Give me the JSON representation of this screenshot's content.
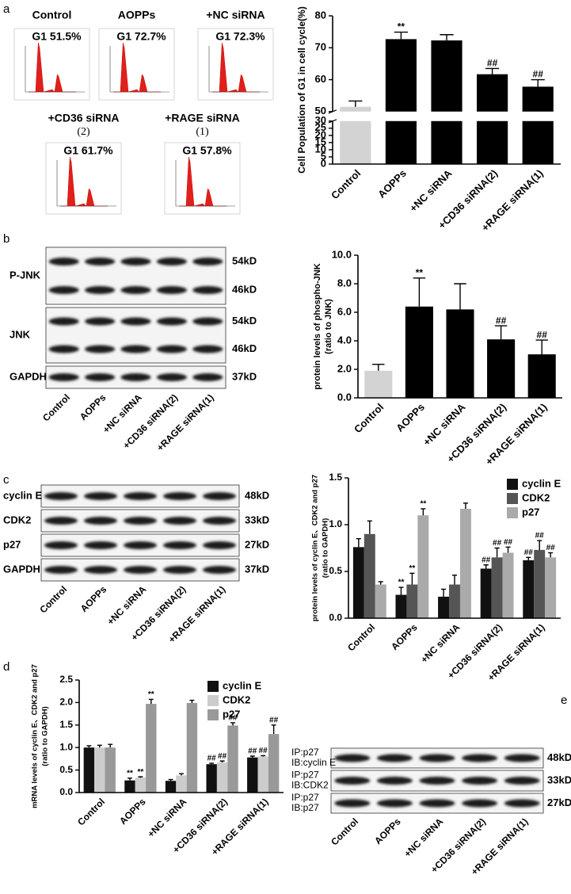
{
  "panel_labels": [
    "a",
    "b",
    "c",
    "d",
    "e"
  ],
  "flow_plots": [
    {
      "title": "Control",
      "gate": "G1 51.5%"
    },
    {
      "title": "AOPPs",
      "gate": "G1 72.7%"
    },
    {
      "title": "+NC siRNA",
      "gate": "G1 72.3%"
    },
    {
      "title": "+CD36 siRNA",
      "note": "(2)",
      "gate": "G1 61.7%"
    },
    {
      "title": "+RAGE siRNA",
      "note": "(1)",
      "gate": "G1 57.8%"
    }
  ],
  "blots": [
    {
      "lanes": [
        "Control",
        "AOPPs",
        "+NC siRNA",
        "+CD36 siRNA(2)",
        "+RAGE siRNA(1)"
      ],
      "rows": [
        {
          "label": [
            "P-JNK"
          ],
          "bands": [
            "54kD",
            "46kD"
          ]
        },
        {
          "label": [
            "JNK"
          ],
          "bands": [
            "54kD",
            "46kD"
          ]
        },
        {
          "label": [
            "GAPDH"
          ],
          "bands": [
            "37kD"
          ]
        }
      ]
    },
    {
      "lanes": [
        "Control",
        "AOPPs",
        "+NC siRNA",
        "+CD36 siRNA(2)",
        "+RAGE siRNA(1)"
      ],
      "rows": [
        {
          "label": [
            "cyclin E"
          ],
          "bands": [
            "48kD"
          ]
        },
        {
          "label": [
            "CDK2"
          ],
          "bands": [
            "33kD"
          ]
        },
        {
          "label": [
            "p27"
          ],
          "bands": [
            "27kD"
          ]
        },
        {
          "label": [
            "GAPDH"
          ],
          "bands": [
            "37kD"
          ]
        }
      ]
    },
    {
      "lanes": [
        "Control",
        "AOPPs",
        "+NC siRNA",
        "+CD36 siRNA(2)",
        "+RAGE siRNA(1)"
      ],
      "rows": [
        {
          "label": [
            "IP:p27",
            "IB:cyclin E"
          ],
          "bands": [
            "48kD"
          ]
        },
        {
          "label": [
            "IP:p27",
            "IB:CDK2"
          ],
          "bands": [
            "33kD"
          ]
        },
        {
          "label": [
            "IP:p27",
            "IB:p27"
          ],
          "bands": [
            "27kD"
          ]
        }
      ]
    }
  ],
  "chart_data": [
    {
      "type": "bar",
      "ylabel": [
        "Cell Population of G1 in cell cycle(%)"
      ],
      "categories": [
        "Control",
        "AOPPs",
        "+NC siRNA",
        "+CD36 siRNA(2)",
        "+RAGE siRNA(1)"
      ],
      "values": [
        51.5,
        72.7,
        72.3,
        61.7,
        57.8
      ],
      "errors": [
        1.8,
        2.2,
        1.8,
        1.8,
        2.2
      ],
      "annotations": [
        null,
        "**",
        null,
        "##",
        "##"
      ],
      "colors": [
        "#d3d3d3",
        "#000000",
        "#000000",
        "#000000",
        "#000000"
      ],
      "ylim": [
        0,
        80
      ],
      "ybreak": [
        30,
        50
      ],
      "yticks": [
        0,
        5,
        10,
        15,
        20,
        25,
        30,
        50,
        60,
        70,
        80
      ]
    },
    {
      "type": "bar",
      "ylabel": [
        "protein levels of phospho-JNK",
        "(ratio to JNK)"
      ],
      "categories": [
        "Control",
        "AOPPs",
        "+NC siRNA",
        "+CD36 siRNA(2)",
        "+RAGE siRNA(1)"
      ],
      "values": [
        1.9,
        6.4,
        6.2,
        4.1,
        3.05
      ],
      "errors": [
        0.45,
        2.0,
        1.8,
        0.95,
        1.0
      ],
      "annotations": [
        null,
        "**",
        null,
        "##",
        "##"
      ],
      "colors": [
        "#d3d3d3",
        "#000000",
        "#000000",
        "#000000",
        "#000000"
      ],
      "ylim": [
        0,
        10
      ],
      "yticks": [
        {
          "value": 0,
          "label": "0.0"
        },
        {
          "value": 2,
          "label": "2.0"
        },
        {
          "value": 4,
          "label": "4.0"
        },
        {
          "value": 6,
          "label": "6.0"
        },
        {
          "value": 8,
          "label": "8.0"
        },
        {
          "value": 10,
          "label": "10.0"
        }
      ]
    },
    {
      "type": "bar",
      "ylabel": [
        "protein levels of cyclin E、CDK2 and p27",
        "(ratio to GAPDH)"
      ],
      "categories": [
        "Control",
        "AOPPs",
        "+NC siRNA",
        "+CD36 siRNA(2)",
        "+RAGE siRNA(1)"
      ],
      "series": [
        {
          "name": "cyclin E",
          "color": "#111111",
          "values": [
            0.76,
            0.25,
            0.23,
            0.53,
            0.62
          ],
          "errors": [
            0.09,
            0.08,
            0.08,
            0.04,
            0.03
          ],
          "annotations": [
            null,
            "**",
            null,
            "##",
            "##"
          ]
        },
        {
          "name": "CDK2",
          "color": "#555555",
          "values": [
            0.9,
            0.36,
            0.36,
            0.65,
            0.73
          ],
          "errors": [
            0.14,
            0.12,
            0.1,
            0.1,
            0.1
          ],
          "annotations": [
            null,
            "**",
            null,
            "##",
            "##"
          ]
        },
        {
          "name": "p27",
          "color": "#aaaaaa",
          "values": [
            0.36,
            1.1,
            1.17,
            0.7,
            0.65
          ],
          "errors": [
            0.03,
            0.07,
            0.06,
            0.06,
            0.05
          ],
          "annotations": [
            null,
            "**",
            null,
            "##",
            "##"
          ]
        }
      ],
      "legend": "upper right",
      "ylim": [
        0,
        1.5
      ],
      "yticks": [
        {
          "value": 0,
          "label": "0.0"
        },
        {
          "value": 0.5,
          "label": "0.5"
        },
        {
          "value": 1,
          "label": "1.0"
        },
        {
          "value": 1.5,
          "label": "1.5"
        }
      ]
    },
    {
      "type": "bar",
      "ylabel": [
        "mRNA levels of cyclin E、CDK2 and p27",
        "(ratio to GAPDH)"
      ],
      "categories": [
        "Control",
        "AOPPs",
        "+NC siRNA",
        "+CD36 siRNA(2)",
        "+RAGE siRNA(1)"
      ],
      "series": [
        {
          "name": "cyclin E",
          "color": "#111111",
          "values": [
            1.0,
            0.27,
            0.26,
            0.63,
            0.78
          ],
          "errors": [
            0.04,
            0.05,
            0.03,
            0.02,
            0.03
          ],
          "annotations": [
            null,
            "**",
            null,
            "##",
            "##"
          ]
        },
        {
          "name": "CDK2",
          "color": "#cccccc",
          "values": [
            1.0,
            0.33,
            0.38,
            0.67,
            0.8
          ],
          "errors": [
            0.05,
            0.02,
            0.04,
            0.03,
            0.02
          ],
          "annotations": [
            null,
            "**",
            null,
            "##",
            "##"
          ]
        },
        {
          "name": "p27",
          "color": "#999999",
          "values": [
            1.0,
            1.97,
            1.99,
            1.49,
            1.3
          ],
          "errors": [
            0.07,
            0.1,
            0.06,
            0.06,
            0.2
          ],
          "annotations": [
            null,
            "**",
            null,
            "##",
            "##"
          ]
        }
      ],
      "legend": "upper right",
      "ylim": [
        0,
        2.5
      ],
      "yticks": [
        {
          "value": 0,
          "label": "0.0"
        },
        {
          "value": 0.5,
          "label": "0.5"
        },
        {
          "value": 1,
          "label": "1.0"
        },
        {
          "value": 1.5,
          "label": "1.5"
        },
        {
          "value": 2,
          "label": "2.0"
        },
        {
          "value": 2.5,
          "label": "2.5"
        }
      ]
    }
  ]
}
